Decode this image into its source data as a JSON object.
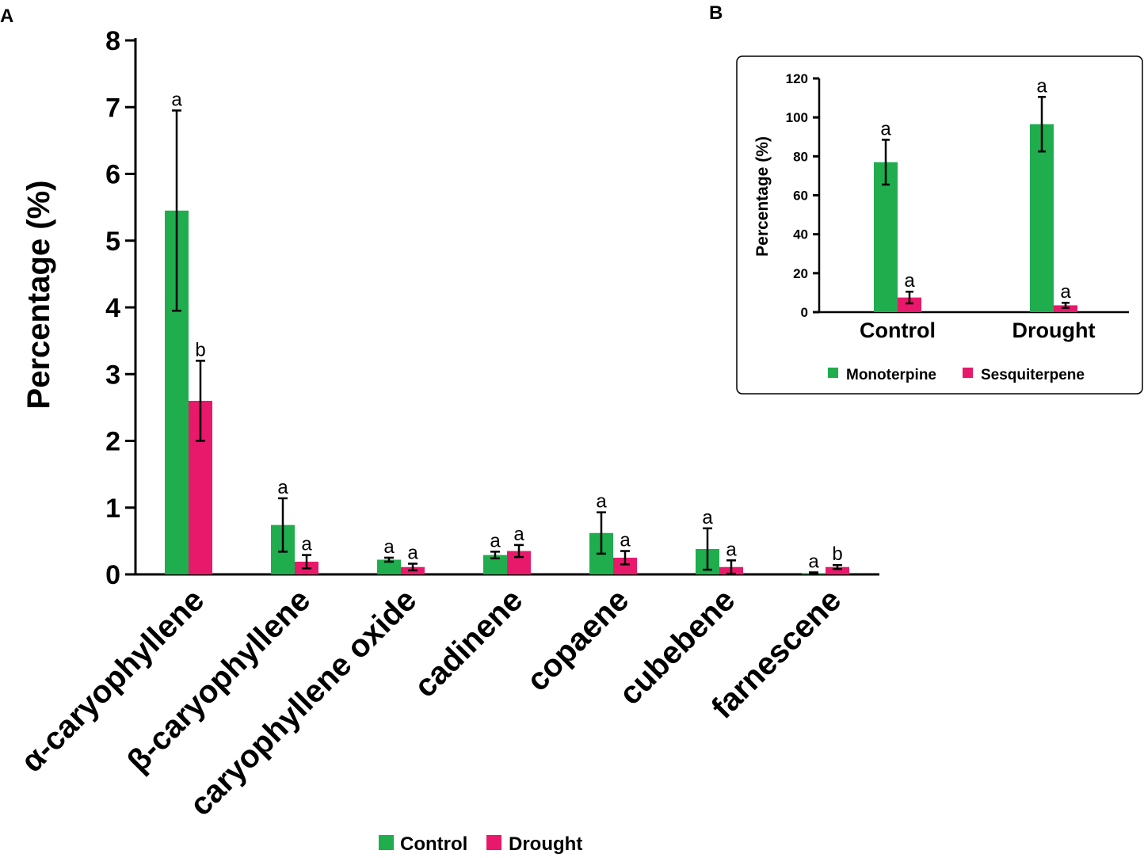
{
  "panels": {
    "a_label": "A",
    "b_label": "B"
  },
  "chart_data": [
    {
      "type": "bar",
      "panel": "A",
      "title": "",
      "xlabel": "",
      "ylabel": "Percentage (%)",
      "ylim": [
        0,
        8
      ],
      "yticks": [
        0,
        1,
        2,
        3,
        4,
        5,
        6,
        7,
        8
      ],
      "categories": [
        "α-caryophyllene",
        "β-caryophyllene",
        "caryophyllene oxide",
        "cadinene",
        "copaene",
        "cubebene",
        "farnescene"
      ],
      "series": [
        {
          "name": "Control",
          "color": "#1fad4e",
          "values": [
            5.45,
            0.74,
            0.22,
            0.29,
            0.62,
            0.38,
            0.02
          ],
          "errors": [
            1.5,
            0.4,
            0.03,
            0.05,
            0.31,
            0.31,
            0.01
          ],
          "letters": [
            "a",
            "a",
            "a",
            "a",
            "a",
            "a",
            "a"
          ]
        },
        {
          "name": "Drought",
          "color": "#e8196a",
          "values": [
            2.6,
            0.19,
            0.11,
            0.35,
            0.25,
            0.11,
            0.11
          ],
          "errors": [
            0.6,
            0.1,
            0.05,
            0.09,
            0.1,
            0.1,
            0.03
          ],
          "letters": [
            "b",
            "a",
            "a",
            "a",
            "a",
            "a",
            "b"
          ]
        }
      ],
      "legend": {
        "position": "bottom-center",
        "entries": [
          "Control",
          "Drought"
        ]
      },
      "grid": false
    },
    {
      "type": "bar",
      "panel": "B",
      "title": "",
      "xlabel": "",
      "ylabel": "Percentage (%)",
      "ylim": [
        0,
        120
      ],
      "yticks": [
        0,
        20,
        40,
        60,
        80,
        100,
        120
      ],
      "categories": [
        "Control",
        "Drought"
      ],
      "series": [
        {
          "name": "Monoterpine",
          "color": "#1fad4e",
          "values": [
            77,
            96.5
          ],
          "errors": [
            11.5,
            14
          ],
          "letters": [
            "a",
            "a"
          ]
        },
        {
          "name": "Sesquiterpene",
          "color": "#e8196a",
          "values": [
            7.5,
            3.5
          ],
          "errors": [
            3,
            1.3
          ],
          "letters": [
            "a",
            "a"
          ]
        }
      ],
      "legend": {
        "position": "bottom-center",
        "entries": [
          "Monoterpine",
          "Sesquiterpene"
        ]
      },
      "grid": false
    }
  ]
}
